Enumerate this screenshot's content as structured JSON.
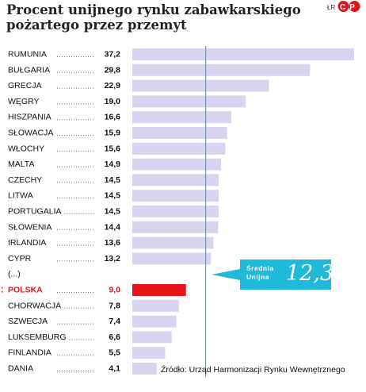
{
  "header": {
    "title": "Procent unijnego rynku zabawkarskiego pożartego przez przemyt",
    "credit": "ŁR",
    "logo_text": "CP"
  },
  "source": "Źródło: Urząd Harmonizacji Rynku Wewnętrznego",
  "average": {
    "label_line1": "Średnia",
    "label_line2": "Unijna",
    "value": "12,3"
  },
  "colors": {
    "bar": "#d6d4ef",
    "highlight_bar": "#e8141b",
    "highlight_text": "#e8141b",
    "average_line": "#1fb9d9",
    "average_box": "#1fb9d9"
  },
  "chart_data": {
    "type": "bar",
    "orientation": "horizontal",
    "categories": [
      "RUMUNIA",
      "BUŁGARIA",
      "GRECJA",
      "WĘGRY",
      "HISZPANIA",
      "SŁOWACJA",
      "WŁOCHY",
      "MALTA",
      "CZECHY",
      "LITWA",
      "PORTUGALIA",
      "SŁOWENIA",
      "IRLANDIA",
      "CYPR",
      "(...)",
      "POLSKA",
      "CHORWACJA",
      "SZWECJA",
      "LUKSEMBURG",
      "FINLANDIA",
      "DANIA"
    ],
    "value_labels": [
      "37,2",
      "29,8",
      "22,9",
      "19,0",
      "16,6",
      "15,9",
      "15,6",
      "14,9",
      "14,5",
      "14,5",
      "14,5",
      "14,4",
      "13,6",
      "13,2",
      "",
      "9,0",
      "7,8",
      "7,4",
      "6,6",
      "5,5",
      "4,1"
    ],
    "values": [
      37.2,
      29.8,
      22.9,
      19.0,
      16.6,
      15.9,
      15.6,
      14.9,
      14.5,
      14.5,
      14.5,
      14.4,
      13.6,
      13.2,
      null,
      9.0,
      7.8,
      7.4,
      6.6,
      5.5,
      4.1
    ],
    "highlight": "POLSKA",
    "reference_line": 12.3,
    "xlim": [
      0,
      37.2
    ]
  }
}
